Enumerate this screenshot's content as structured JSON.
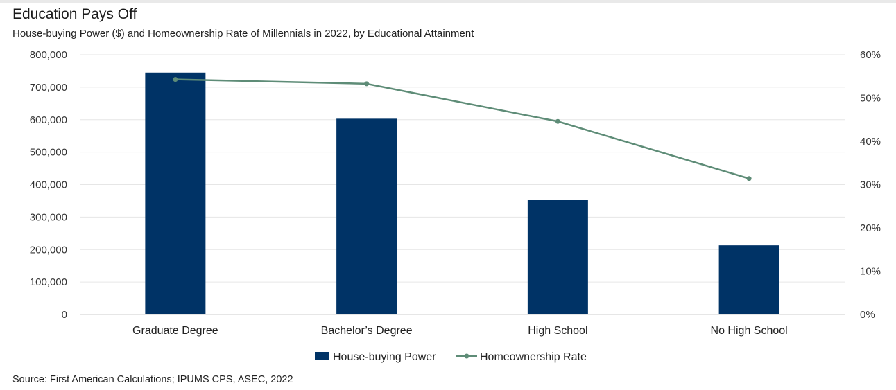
{
  "header": {
    "title": "Education Pays Off",
    "subtitle": "House-buying Power ($) and Homeownership Rate of Millennials in 2022, by Educational Attainment"
  },
  "footer": {
    "source": "Source: First American Calculations; IPUMS CPS, ASEC, 2022"
  },
  "chart_data": {
    "type": "bar",
    "title": "Education Pays Off",
    "subtitle": "House-buying Power ($) and Homeownership Rate of Millennials in 2022, by Educational Attainment",
    "categories": [
      "Graduate Degree",
      "Bachelor’s Degree",
      "High School",
      "No High School"
    ],
    "series": [
      {
        "name": "House-buying Power",
        "type": "bar",
        "axis": "left",
        "color": "#003366",
        "values": [
          745000,
          603000,
          353000,
          213000
        ]
      },
      {
        "name": "Homeownership Rate",
        "type": "line",
        "axis": "right",
        "color": "#5e8c77",
        "values": [
          54.3,
          53.3,
          44.6,
          31.4
        ]
      }
    ],
    "y_left": {
      "min": 0,
      "max": 800000,
      "ticks": [
        "0",
        "100,000",
        "200,000",
        "300,000",
        "400,000",
        "500,000",
        "600,000",
        "700,000",
        "800,000"
      ]
    },
    "y_right": {
      "min": 0,
      "max": 60,
      "ticks": [
        "0%",
        "10%",
        "20%",
        "30%",
        "40%",
        "50%",
        "60%"
      ]
    },
    "grid": "horizontal",
    "legend": "bottom"
  }
}
